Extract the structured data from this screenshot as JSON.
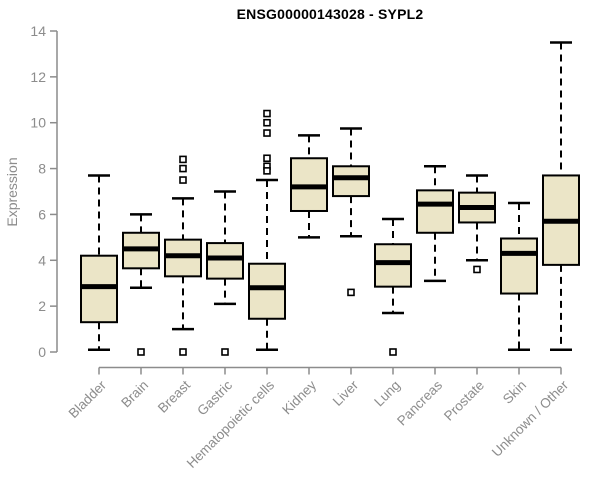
{
  "chart_data": {
    "type": "boxplot",
    "title": "ENSG00000143028 - SYPL2",
    "xlabel": "",
    "ylabel": "Expression",
    "ylim": [
      0,
      14
    ],
    "yticks": [
      0,
      2,
      4,
      6,
      8,
      10,
      12,
      14
    ],
    "grid": false,
    "legend": false,
    "colors": {
      "box_fill": "#EBE5C7",
      "box_stroke": "#000000",
      "median": "#000000",
      "whisker": "#000000",
      "outlier_stroke": "#000000",
      "outlier_fill": "#ffffff",
      "axis": "#8c8c8c",
      "tick_text": "#8c8c8c",
      "title_text": "#000000",
      "background": "#ffffff"
    },
    "categories": [
      "Bladder",
      "Brain",
      "Breast",
      "Gastric",
      "Hematopoietic cells",
      "Kidney",
      "Liver",
      "Lung",
      "Pancreas",
      "Prostate",
      "Skin",
      "Unknown / Other"
    ],
    "series": [
      {
        "name": "Bladder",
        "low": 0.1,
        "q1": 1.3,
        "median": 2.85,
        "q3": 4.2,
        "high": 7.7,
        "outliers": []
      },
      {
        "name": "Brain",
        "low": 2.8,
        "q1": 3.65,
        "median": 4.5,
        "q3": 5.2,
        "high": 6.0,
        "outliers": [
          0.0
        ]
      },
      {
        "name": "Breast",
        "low": 1.0,
        "q1": 3.3,
        "median": 4.2,
        "q3": 4.9,
        "high": 6.7,
        "outliers": [
          8.4,
          8.0,
          7.5,
          0.0
        ]
      },
      {
        "name": "Gastric",
        "low": 2.1,
        "q1": 3.2,
        "median": 4.1,
        "q3": 4.75,
        "high": 7.0,
        "outliers": [
          0.0
        ]
      },
      {
        "name": "Hematopoietic cells",
        "low": 0.1,
        "q1": 1.45,
        "median": 2.8,
        "q3": 3.85,
        "high": 7.5,
        "outliers": [
          10.4,
          10.0,
          9.55,
          8.45,
          8.1,
          7.9
        ]
      },
      {
        "name": "Kidney",
        "low": 5.0,
        "q1": 6.15,
        "median": 7.2,
        "q3": 8.45,
        "high": 9.45,
        "outliers": []
      },
      {
        "name": "Liver",
        "low": 5.05,
        "q1": 6.8,
        "median": 7.6,
        "q3": 8.1,
        "high": 9.75,
        "outliers": [
          2.6
        ]
      },
      {
        "name": "Lung",
        "low": 1.7,
        "q1": 2.85,
        "median": 3.9,
        "q3": 4.7,
        "high": 5.8,
        "outliers": [
          0.0
        ]
      },
      {
        "name": "Pancreas",
        "low": 3.1,
        "q1": 5.2,
        "median": 6.45,
        "q3": 7.05,
        "high": 8.1,
        "outliers": []
      },
      {
        "name": "Prostate",
        "low": 4.0,
        "q1": 5.65,
        "median": 6.3,
        "q3": 6.95,
        "high": 7.7,
        "outliers": [
          3.6
        ]
      },
      {
        "name": "Skin",
        "low": 0.1,
        "q1": 2.55,
        "median": 4.3,
        "q3": 4.95,
        "high": 6.5,
        "outliers": []
      },
      {
        "name": "Unknown / Other",
        "low": 0.1,
        "q1": 3.8,
        "median": 5.7,
        "q3": 7.7,
        "high": 13.5,
        "outliers": []
      }
    ]
  }
}
